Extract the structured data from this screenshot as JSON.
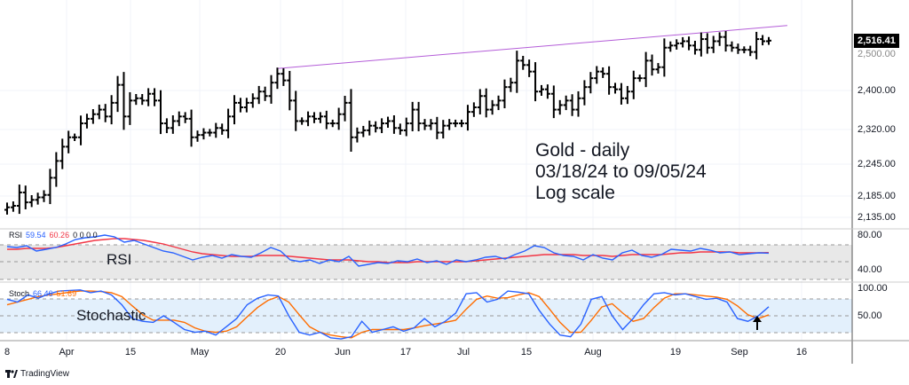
{
  "annotation": {
    "line1": "Gold - daily",
    "line2": "03/18/24 to 09/05/24",
    "line3": "Log scale"
  },
  "price_axis": {
    "last_price": "2,516.41",
    "hidden_label": "2,500.00",
    "ticks": [
      "2,400.00",
      "2,320.00",
      "2,245.00",
      "2,185.00",
      "2,135.00"
    ]
  },
  "rsi": {
    "title": "RSI",
    "legend_name": "RSI",
    "value": "59.54",
    "ma_value": "60.26",
    "extra": "0 0 0 0",
    "ticks": [
      "80.00",
      "40.00"
    ]
  },
  "stoch": {
    "title": "Stochastic",
    "legend_name": "Stoch",
    "k_value": "66.46",
    "d_value": "51.69",
    "ticks": [
      "100.00",
      "50.00"
    ]
  },
  "x_axis": {
    "labels": [
      "8",
      "Apr",
      "15",
      "May",
      "20",
      "Jun",
      "17",
      "Jul",
      "15",
      "Aug",
      "19",
      "Sep",
      "16"
    ]
  },
  "branding": {
    "logo_text": "TradingView"
  },
  "colors": {
    "price": "#000000",
    "trendline": "#b45dd8",
    "rsi": "#2962ff",
    "rsi_ma": "#f23645",
    "stoch_k": "#2962ff",
    "stoch_d": "#ff6d00"
  },
  "chart_data": {
    "type": "line",
    "title": "Gold - daily",
    "scale": "log",
    "ylim": [
      2120,
      2560
    ],
    "closes": [
      2155,
      2158,
      2185,
      2165,
      2170,
      2175,
      2180,
      2215,
      2250,
      2280,
      2300,
      2300,
      2330,
      2340,
      2350,
      2360,
      2345,
      2375,
      2415,
      2345,
      2380,
      2385,
      2380,
      2395,
      2380,
      2330,
      2320,
      2335,
      2345,
      2340,
      2300,
      2305,
      2310,
      2310,
      2320,
      2315,
      2345,
      2375,
      2365,
      2375,
      2385,
      2400,
      2390,
      2420,
      2440,
      2425,
      2380,
      2335,
      2335,
      2345,
      2340,
      2345,
      2330,
      2330,
      2350,
      2375,
      2300,
      2310,
      2315,
      2325,
      2320,
      2330,
      2335,
      2320,
      2315,
      2330,
      2360,
      2330,
      2325,
      2330,
      2310,
      2325,
      2330,
      2330,
      2330,
      2355,
      2365,
      2390,
      2360,
      2370,
      2380,
      2410,
      2420,
      2470,
      2460,
      2445,
      2400,
      2405,
      2395,
      2360,
      2370,
      2380,
      2360,
      2385,
      2410,
      2430,
      2445,
      2440,
      2410,
      2405,
      2385,
      2400,
      2430,
      2430,
      2470,
      2450,
      2455,
      2500,
      2505,
      2510,
      2515,
      2505,
      2495,
      2520,
      2500,
      2515,
      2525,
      2505,
      2500,
      2495,
      2495,
      2490,
      2520,
      2515,
      2516.41
    ],
    "trendline": {
      "from_index": 44,
      "from_price": 2452,
      "to_index": 125,
      "to_price": 2552
    },
    "rsi_values": [
      67,
      66,
      68,
      62,
      64,
      66,
      70,
      75,
      77,
      78,
      80,
      78,
      72,
      74,
      70,
      66,
      62,
      60,
      56,
      52,
      55,
      57,
      54,
      58,
      56,
      55,
      60,
      66,
      62,
      52,
      50,
      52,
      48,
      52,
      50,
      56,
      45,
      47,
      49,
      48,
      51,
      50,
      53,
      49,
      51,
      47,
      52,
      50,
      52,
      55,
      56,
      53,
      58,
      62,
      68,
      66,
      60,
      57,
      56,
      52,
      58,
      54,
      52,
      60,
      63,
      57,
      55,
      58,
      64,
      63,
      62,
      65,
      63,
      60,
      61,
      58,
      59,
      60,
      59.54
    ],
    "rsi_ma_values": [
      64,
      64,
      65,
      65,
      65,
      66,
      68,
      70,
      72,
      74,
      75,
      76,
      76,
      75,
      74,
      72,
      70,
      67,
      64,
      61,
      59,
      58,
      57,
      56,
      56,
      56,
      57,
      57,
      57,
      56,
      55,
      54,
      53,
      52,
      52,
      52,
      51,
      50,
      50,
      49,
      49,
      49,
      50,
      50,
      50,
      50,
      50,
      50,
      51,
      52,
      53,
      54,
      55,
      56,
      57,
      58,
      58,
      58,
      58,
      57,
      57,
      57,
      56,
      57,
      58,
      58,
      58,
      58,
      59,
      60,
      60,
      61,
      61,
      61,
      61,
      60,
      60,
      60,
      60.26
    ],
    "stoch_k": [
      80,
      75,
      88,
      82,
      90,
      95,
      96,
      97,
      92,
      95,
      88,
      70,
      45,
      40,
      38,
      50,
      38,
      25,
      20,
      22,
      15,
      30,
      45,
      70,
      82,
      88,
      86,
      50,
      20,
      15,
      20,
      10,
      8,
      12,
      40,
      20,
      25,
      30,
      22,
      28,
      45,
      30,
      40,
      55,
      90,
      92,
      75,
      80,
      95,
      93,
      90,
      60,
      35,
      15,
      12,
      35,
      80,
      85,
      50,
      25,
      45,
      70,
      90,
      92,
      88,
      90,
      85,
      80,
      82,
      75,
      45,
      40,
      50,
      66.46
    ],
    "stoch_d": [
      70,
      75,
      80,
      85,
      88,
      90,
      93,
      95,
      95,
      94,
      92,
      85,
      68,
      52,
      42,
      42,
      42,
      38,
      28,
      22,
      20,
      22,
      30,
      48,
      65,
      78,
      85,
      75,
      52,
      30,
      20,
      15,
      12,
      10,
      20,
      25,
      25,
      25,
      25,
      28,
      32,
      35,
      38,
      42,
      62,
      80,
      86,
      82,
      83,
      88,
      92,
      85,
      62,
      38,
      20,
      20,
      42,
      66,
      72,
      55,
      40,
      45,
      65,
      82,
      90,
      90,
      88,
      86,
      84,
      80,
      68,
      52,
      45,
      51.69
    ]
  }
}
